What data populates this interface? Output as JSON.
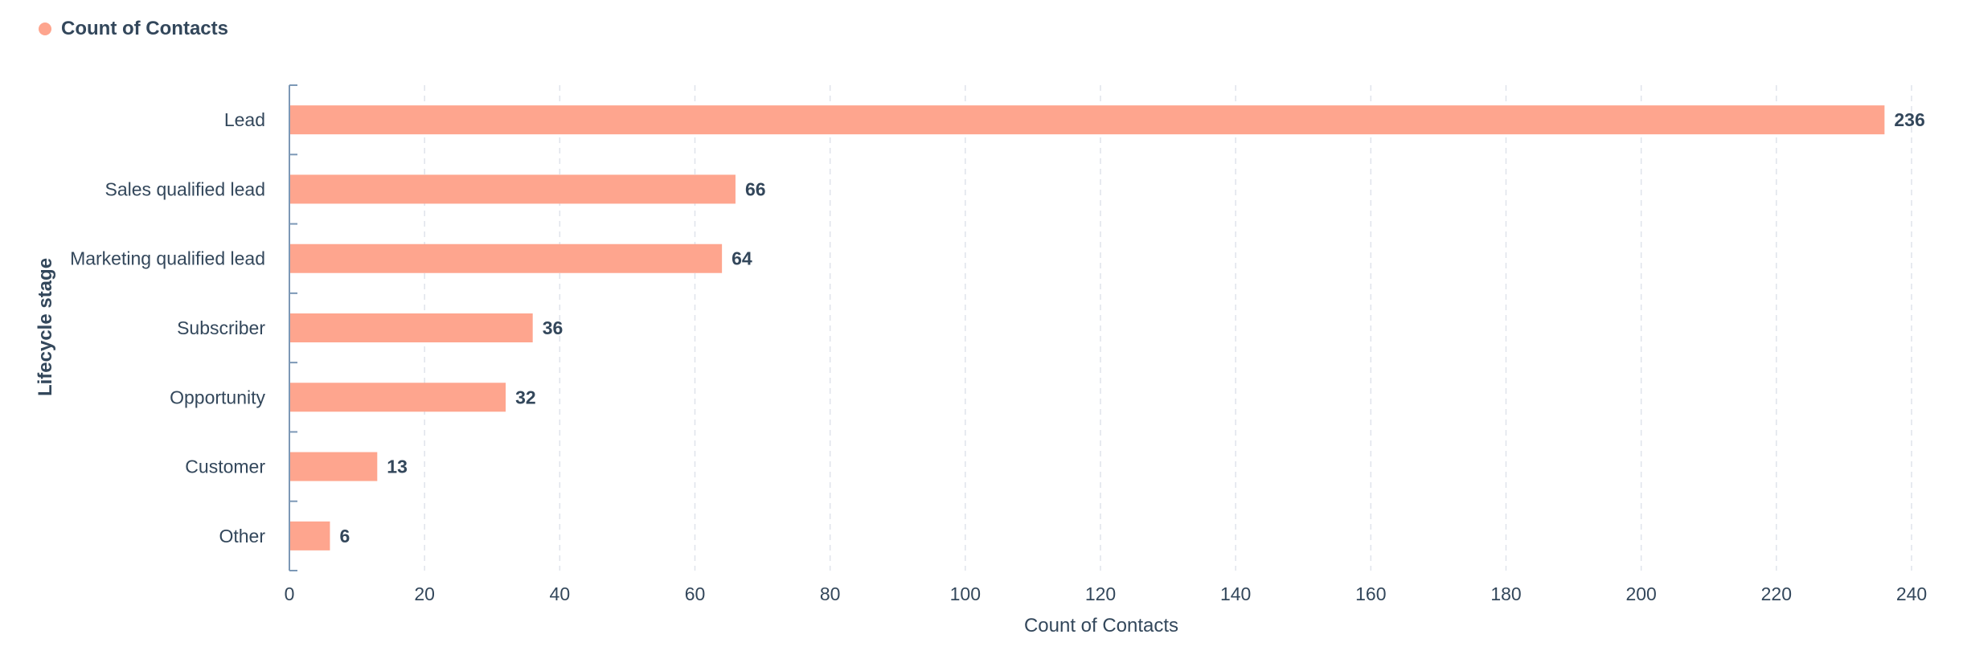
{
  "legend": {
    "label": "Count of Contacts"
  },
  "colors": {
    "bar": "#fea58e",
    "axis": "#7c98b6",
    "grid": "#dfe3eb",
    "text": "#33475b"
  },
  "chart_data": {
    "type": "bar",
    "orientation": "horizontal",
    "categories": [
      "Lead",
      "Sales qualified lead",
      "Marketing qualified lead",
      "Subscriber",
      "Opportunity",
      "Customer",
      "Other"
    ],
    "series": [
      {
        "name": "Count of Contacts",
        "values": [
          236,
          66,
          64,
          36,
          32,
          13,
          6
        ]
      }
    ],
    "xlabel": "Count of Contacts",
    "ylabel": "Lifecycle stage",
    "xlim": [
      0,
      240
    ],
    "xticks": [
      0,
      20,
      40,
      60,
      80,
      100,
      120,
      140,
      160,
      180,
      200,
      220,
      240
    ],
    "grid": true,
    "legend_position": "top-left",
    "data_labels": true
  }
}
